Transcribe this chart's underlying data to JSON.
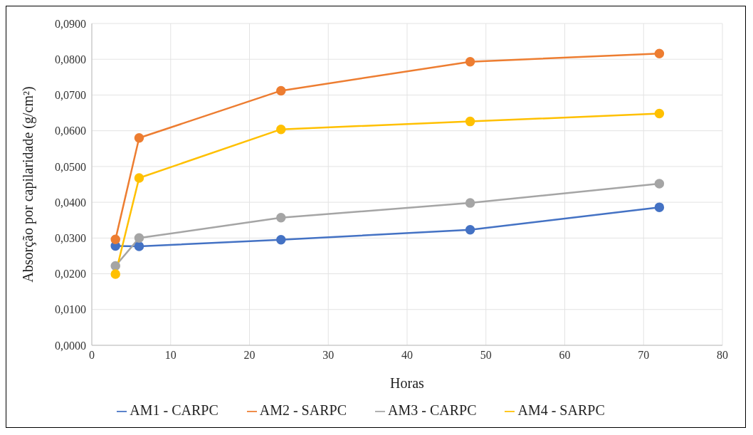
{
  "chart_data": {
    "type": "line",
    "xlabel": "Horas",
    "ylabel": "Absorção por capilaridade (g/cm²)",
    "x": [
      3,
      6,
      24,
      48,
      72
    ],
    "series": [
      {
        "name": "AM1 - CARPC",
        "color": "#4472c4",
        "values": [
          0.0278,
          0.0277,
          0.0295,
          0.0323,
          0.0386
        ]
      },
      {
        "name": "AM2 - SARPC",
        "color": "#ed7d31",
        "values": [
          0.0296,
          0.058,
          0.0712,
          0.0793,
          0.0816
        ]
      },
      {
        "name": "AM3 - CARPC",
        "color": "#a5a5a5",
        "values": [
          0.0222,
          0.03,
          0.0357,
          0.0398,
          0.0452
        ]
      },
      {
        "name": "AM4 - SARPC",
        "color": "#ffc000",
        "values": [
          0.0199,
          0.0468,
          0.0604,
          0.0626,
          0.0648
        ]
      }
    ],
    "xlim": [
      0,
      80
    ],
    "xticks": [
      0,
      10,
      20,
      30,
      40,
      50,
      60,
      70,
      80
    ],
    "ylim": [
      0,
      0.09
    ],
    "yticks": [
      {
        "value": 0,
        "label": "0,0000"
      },
      {
        "value": 0.01,
        "label": "0,0100"
      },
      {
        "value": 0.02,
        "label": "0,0200"
      },
      {
        "value": 0.03,
        "label": "0,0300"
      },
      {
        "value": 0.04,
        "label": "0,0400"
      },
      {
        "value": 0.05,
        "label": "0,0500"
      },
      {
        "value": 0.06,
        "label": "0,0600"
      },
      {
        "value": 0.07,
        "label": "0,0700"
      },
      {
        "value": 0.08,
        "label": "0,0800"
      },
      {
        "value": 0.09,
        "label": "0,0900"
      }
    ],
    "grid": true,
    "legend": "bottom",
    "marker": "circle",
    "line_style": "solid"
  }
}
